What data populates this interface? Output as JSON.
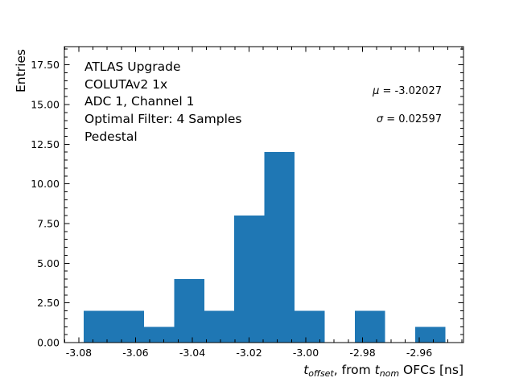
{
  "figure": {
    "background": "#ffffff"
  },
  "chart_data": {
    "type": "bar",
    "subtype": "histogram",
    "ylabel": "Entries",
    "xlabel_text": "t_offset, from t_nom OFCs [ns]",
    "xlabel_parts": [
      {
        "text": "t",
        "style": "italic"
      },
      {
        "text": "offset",
        "style": "italic-sub"
      },
      {
        "text": ", from ",
        "style": "normal"
      },
      {
        "text": "t",
        "style": "italic"
      },
      {
        "text": "nom",
        "style": "italic-sub"
      },
      {
        "text": " OFCs [ns]",
        "style": "normal"
      }
    ],
    "bins": {
      "start": -3.0783,
      "width": 0.010625,
      "counts": [
        2,
        2,
        1,
        4,
        2,
        8,
        12,
        2,
        0,
        2,
        0,
        1
      ]
    },
    "total_entries": 36,
    "xlim": [
      -3.0851,
      -2.9444
    ],
    "ylim": [
      0,
      18.65
    ],
    "x_major_ticks": [
      -3.08,
      -3.06,
      -3.04,
      -3.02,
      -3.0,
      -2.98,
      -2.96
    ],
    "x_tick_labels": [
      "-3.08",
      "-3.06",
      "-3.04",
      "-3.02",
      "-3.00",
      "-2.98",
      "-2.96"
    ],
    "x_minor_step": 0.005,
    "y_major_ticks": [
      0,
      2.5,
      5,
      7.5,
      10,
      12.5,
      15,
      17.5
    ],
    "y_tick_labels": [
      "0.00",
      "2.50",
      "5.00",
      "7.50",
      "10.00",
      "12.50",
      "15.00",
      "17.50"
    ],
    "y_minor_step": 0.5,
    "bar_color": "#1f77b4",
    "axis_color": "#000000",
    "grid": false,
    "annotations": {
      "info_lines": [
        "ATLAS Upgrade",
        "COLUTAv2 1x",
        "ADC 1, Channel 1",
        "Optimal Filter: 4 Samples",
        "Pedestal"
      ],
      "mu": {
        "symbol": "μ",
        "rest": " = -3.02027"
      },
      "sigma": {
        "symbol": "σ",
        "rest": " = 0.02597"
      }
    }
  }
}
